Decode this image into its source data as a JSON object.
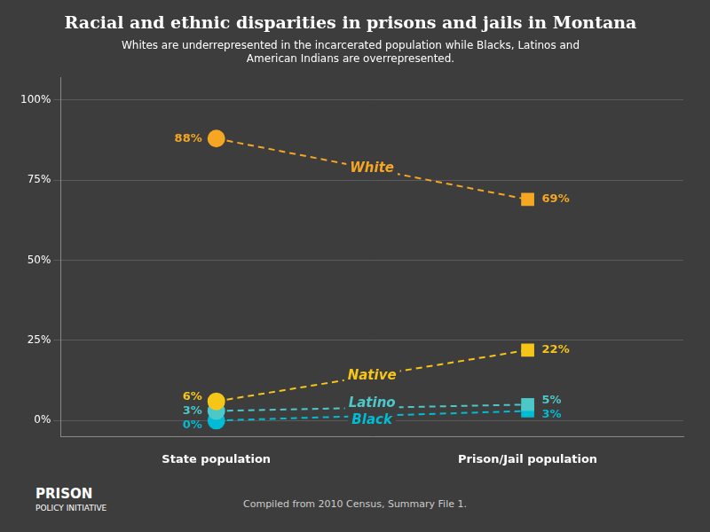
{
  "chart_data": {
    "type": "line",
    "title": "Racial and ethnic disparities in prisons and jails in Montana",
    "subtitle": "Whites are underrepresented in the incarcerated population while Blacks, Latinos and\nAmerican Indians are overrepresented.",
    "footnote": "Compiled from 2010 Census, Summary File 1.",
    "annotations": [
      "PRISON",
      "POLICY INITIATIVE"
    ],
    "categories": [
      "State population",
      "Prison/Jail population"
    ],
    "series": [
      {
        "name": "White",
        "color": "#f5a623",
        "values": [
          88,
          69
        ],
        "value_labels": [
          "88%",
          "69%"
        ],
        "line_style": "dashed"
      },
      {
        "name": "Native",
        "color": "#f5c518",
        "values": [
          6,
          22
        ],
        "value_labels": [
          "6%",
          "22%"
        ],
        "line_style": "dashed"
      },
      {
        "name": "Latino",
        "color": "#4dc8c8",
        "values": [
          3,
          5
        ],
        "value_labels": [
          "3%",
          "5%"
        ],
        "line_style": "dashed"
      },
      {
        "name": "Black",
        "color": "#00bcd4",
        "values": [
          0,
          3
        ],
        "value_labels": [
          "0%",
          "3%"
        ],
        "line_style": "dashed"
      }
    ],
    "ylim": [
      -5,
      107
    ],
    "yticks": [
      {
        "value": 0,
        "label": "0%"
      },
      {
        "value": 25,
        "label": "25%"
      },
      {
        "value": 50,
        "label": "50%"
      },
      {
        "value": 75,
        "label": "75%"
      },
      {
        "value": 100,
        "label": "100%"
      }
    ],
    "grid": true,
    "data_labels": true
  }
}
